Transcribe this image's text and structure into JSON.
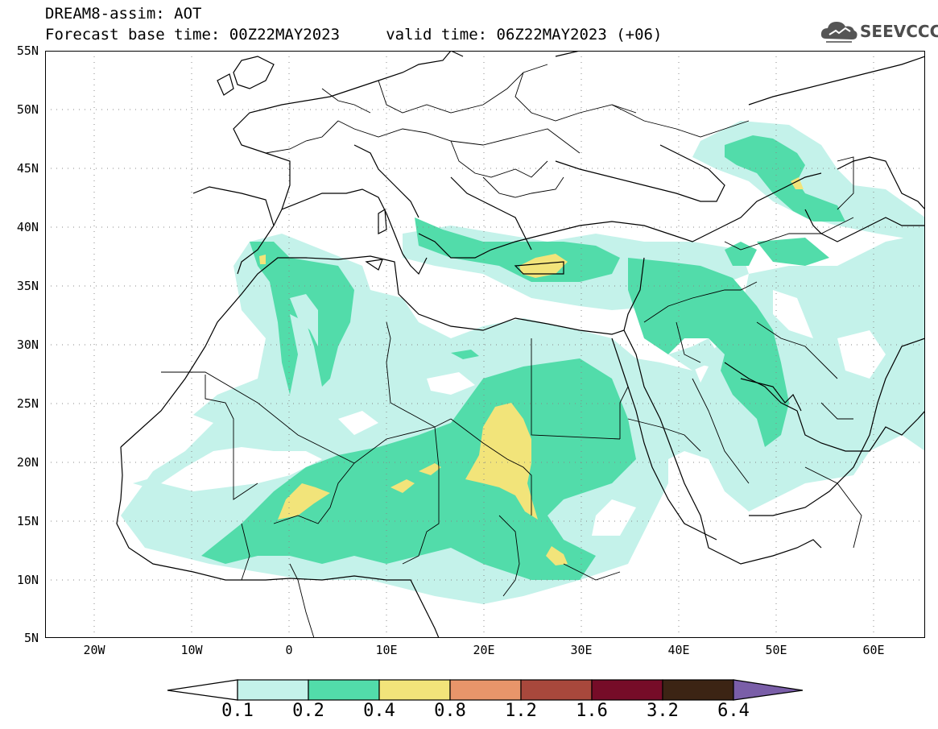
{
  "header": {
    "title_line1": "DREAM8-assim: AOT",
    "title_line2": "Forecast base time: 00Z22MAY2023     valid time: 06Z22MAY2023 (+06)"
  },
  "logo": {
    "text": "SEEVCCC",
    "icon": "cloud-icon"
  },
  "map": {
    "lon_range": [
      -25,
      65
    ],
    "lat_range": [
      5,
      55
    ],
    "grid": "dotted",
    "y_labels": [
      "55N",
      "50N",
      "45N",
      "40N",
      "35N",
      "30N",
      "25N",
      "20N",
      "15N",
      "10N",
      "5N"
    ],
    "x_labels": [
      "20W",
      "10W",
      "0",
      "10E",
      "20E",
      "30E",
      "40E",
      "50E",
      "60E"
    ]
  },
  "colorbar": {
    "labels": [
      "0.1",
      "0.2",
      "0.4",
      "0.8",
      "1.2",
      "1.6",
      "3.2",
      "6.4"
    ],
    "colors": [
      "#ffffff",
      "#c4f2ea",
      "#52dcaa",
      "#f2e47a",
      "#e8956a",
      "#a8483c",
      "#760c28",
      "#3c2414",
      "#7a5ea8"
    ]
  }
}
